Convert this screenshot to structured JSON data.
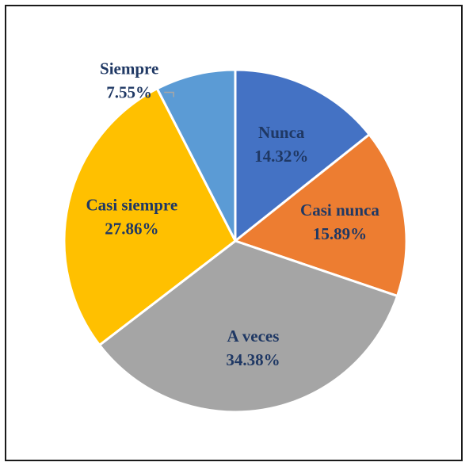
{
  "chart_data": {
    "type": "pie",
    "title": "",
    "start_angle_deg": 0,
    "direction": "clockwise",
    "legend": "none",
    "slices": [
      {
        "name": "Nunca",
        "value": 14.32,
        "value_label": "14.32%",
        "color": "#4472C4",
        "label_color": "#1F3864"
      },
      {
        "name": "Casi nunca",
        "value": 15.89,
        "value_label": "15.89%",
        "color": "#ED7D31",
        "label_color": "#1F3864"
      },
      {
        "name": "A veces",
        "value": 34.38,
        "value_label": "34.38%",
        "color": "#A5A5A5",
        "label_color": "#1F3864"
      },
      {
        "name": "Casi siempre",
        "value": 27.86,
        "value_label": "27.86%",
        "color": "#FFC000",
        "label_color": "#1F3864"
      },
      {
        "name": "Siempre",
        "value": 7.55,
        "value_label": "7.55%",
        "color": "#5B9BD5",
        "label_color": "#1F3864"
      }
    ]
  }
}
